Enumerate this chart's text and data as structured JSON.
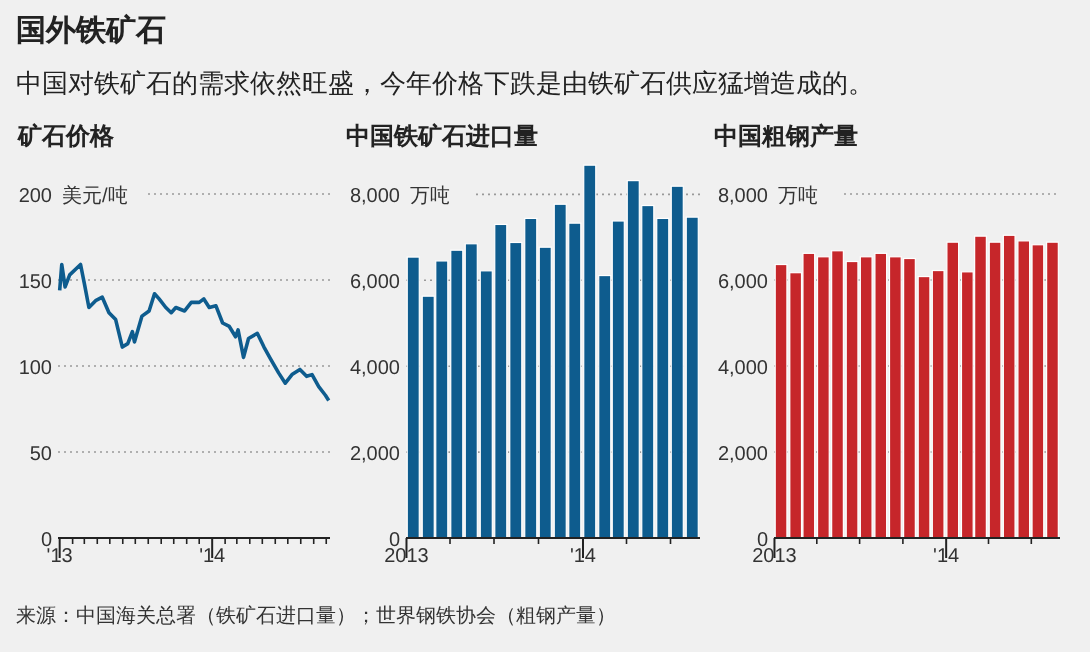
{
  "chart_data": [
    {
      "type": "line",
      "title": "矿石价格",
      "ylabel": "美元/吨",
      "annotations": [
        "国外铁矿石",
        "中国对铁矿石的需求依然旺盛，今年价格下跌是由铁矿石供应猛增造成的。",
        "来源：中国海关总署（铁矿石进口量）；世界钢铁协会（粗钢产量）"
      ],
      "series": [
        {
          "color": "#0e5c8e",
          "x": [
            "2013-01-01",
            "2013-01-06",
            "2013-01-14",
            "2013-01-25",
            "2013-02-20",
            "2013-03-01",
            "2013-03-12",
            "2013-03-28",
            "2013-04-13",
            "2013-04-29",
            "2013-05-15",
            "2013-05-31",
            "2013-06-13",
            "2013-06-24",
            "2013-06-29",
            "2013-07-17",
            "2013-08-03",
            "2013-08-16",
            "2013-08-27",
            "2013-09-12",
            "2013-09-25",
            "2013-10-06",
            "2013-10-27",
            "2013-11-12",
            "2013-12-01",
            "2013-12-12",
            "2013-12-25",
            "2014-01-10",
            "2014-01-26",
            "2014-02-11",
            "2014-02-26",
            "2014-03-04",
            "2014-03-17",
            "2014-03-29",
            "2014-04-19",
            "2014-05-05",
            "2014-05-21",
            "2014-06-09",
            "2014-06-25",
            "2014-07-11",
            "2014-07-30",
            "2014-08-15",
            "2014-08-28",
            "2014-09-13",
            "2014-09-29",
            "2014-10-07"
          ],
          "values": [
            144,
            159,
            146,
            153,
            159,
            148,
            134,
            138,
            140,
            131,
            127,
            111,
            113,
            120,
            114,
            129,
            132,
            142,
            139,
            134,
            131,
            134,
            132,
            137,
            137,
            139,
            134,
            135,
            125,
            123,
            117,
            121,
            105,
            116,
            119,
            111,
            104,
            96,
            90,
            95,
            98,
            94,
            95,
            88,
            83,
            80
          ]
        }
      ],
      "xlim": [
        "2012-12-28",
        "2014-10-10"
      ],
      "xticks": [
        {
          "value": "2013-01-01",
          "label": "'13"
        },
        {
          "value": "2013-02-01",
          "label": null
        },
        {
          "value": "2013-03-01",
          "label": null
        },
        {
          "value": "2013-04-01",
          "label": null
        },
        {
          "value": "2013-05-01",
          "label": null
        },
        {
          "value": "2013-06-01",
          "label": null
        },
        {
          "value": "2013-07-01",
          "label": null
        },
        {
          "value": "2013-08-01",
          "label": null
        },
        {
          "value": "2013-09-01",
          "label": null
        },
        {
          "value": "2013-10-01",
          "label": null
        },
        {
          "value": "2013-11-01",
          "label": null
        },
        {
          "value": "2013-12-01",
          "label": null
        },
        {
          "value": "2014-01-01",
          "label": "'14"
        },
        {
          "value": "2014-02-01",
          "label": null
        },
        {
          "value": "2014-03-01",
          "label": null
        },
        {
          "value": "2014-04-01",
          "label": null
        },
        {
          "value": "2014-05-01",
          "label": null
        },
        {
          "value": "2014-06-01",
          "label": null
        },
        {
          "value": "2014-07-01",
          "label": null
        },
        {
          "value": "2014-08-01",
          "label": null
        },
        {
          "value": "2014-09-01",
          "label": null
        },
        {
          "value": "2014-10-01",
          "label": null
        }
      ],
      "ylim": [
        0,
        200
      ],
      "yticks": [
        0,
        50,
        100,
        150,
        200
      ],
      "grid": "y",
      "marker": "none",
      "line_style": "solid"
    },
    {
      "type": "bar",
      "title": "中国铁矿石进口量",
      "ylabel": "万吨",
      "x": [
        "2013-01-15",
        "2013-02-15",
        "2013-03-15",
        "2013-04-15",
        "2013-05-15",
        "2013-06-15",
        "2013-07-15",
        "2013-08-15",
        "2013-09-15",
        "2013-10-15",
        "2013-11-15",
        "2013-12-15",
        "2014-01-15",
        "2014-02-15",
        "2014-03-15",
        "2014-04-15",
        "2014-05-15",
        "2014-06-15",
        "2014-07-15",
        "2014-08-15"
      ],
      "series": [
        {
          "color": "#0e5c8e",
          "values": [
            6540,
            5630,
            6450,
            6700,
            6850,
            6220,
            7300,
            6880,
            7440,
            6770,
            7770,
            7330,
            8680,
            6110,
            7380,
            8320,
            7740,
            7440,
            8190,
            7470
          ]
        }
      ],
      "xlim": [
        "2012-12-31",
        "2014-08-31"
      ],
      "xticks": [
        {
          "value": "2013-01-01",
          "label": "2013"
        },
        {
          "value": "2013-04-01",
          "label": null
        },
        {
          "value": "2013-07-01",
          "label": null
        },
        {
          "value": "2013-10-01",
          "label": null
        },
        {
          "value": "2014-01-01",
          "label": "'14"
        },
        {
          "value": "2014-04-01",
          "label": null
        },
        {
          "value": "2014-07-01",
          "label": null
        }
      ],
      "ylim": [
        0,
        8800
      ],
      "yticks": [
        0,
        {
          "value": 2000,
          "label": "2,000"
        },
        {
          "value": 4000,
          "label": "4,000"
        },
        {
          "value": 6000,
          "label": "6,000"
        },
        {
          "value": 8000,
          "label": "8,000"
        }
      ],
      "grid": "y"
    },
    {
      "type": "bar",
      "title": "中国粗钢产量",
      "ylabel": "万吨",
      "x": [
        "2013-01-15",
        "2013-02-15",
        "2013-03-15",
        "2013-04-15",
        "2013-05-15",
        "2013-06-15",
        "2013-07-15",
        "2013-08-15",
        "2013-09-15",
        "2013-10-15",
        "2013-11-15",
        "2013-12-15",
        "2014-01-15",
        "2014-02-15",
        "2014-03-15",
        "2014-04-15",
        "2014-05-15",
        "2014-06-15",
        "2014-07-15",
        "2014-08-15"
      ],
      "series": [
        {
          "color": "#c6262a",
          "values": [
            6360,
            6170,
            6620,
            6540,
            6680,
            6430,
            6540,
            6620,
            6540,
            6500,
            6080,
            6220,
            6880,
            6190,
            7020,
            6880,
            7040,
            6910,
            6820,
            6880
          ]
        }
      ],
      "xlim": [
        "2012-12-31",
        "2014-08-31"
      ],
      "xticks": [
        {
          "value": "2013-01-01",
          "label": "2013"
        },
        {
          "value": "2013-04-01",
          "label": null
        },
        {
          "value": "2013-07-01",
          "label": null
        },
        {
          "value": "2013-10-01",
          "label": null
        },
        {
          "value": "2014-01-01",
          "label": "'14"
        },
        {
          "value": "2014-04-01",
          "label": null
        },
        {
          "value": "2014-07-01",
          "label": null
        }
      ],
      "ylim": [
        0,
        8000
      ],
      "yticks": [
        0,
        {
          "value": 2000,
          "label": "2,000"
        },
        {
          "value": 4000,
          "label": "4,000"
        },
        {
          "value": 6000,
          "label": "6,000"
        },
        {
          "value": 8000,
          "label": "8,000"
        }
      ],
      "grid": "y"
    }
  ]
}
